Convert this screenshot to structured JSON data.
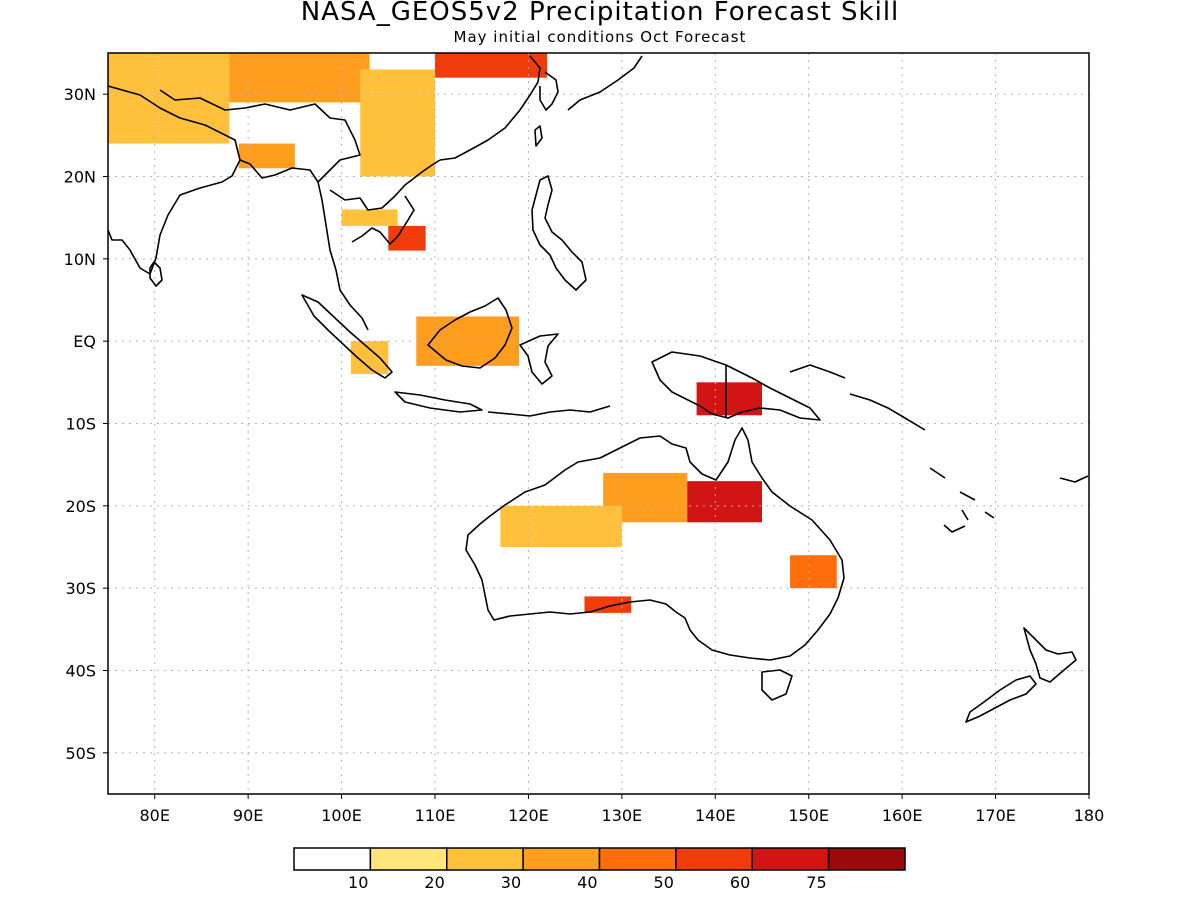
{
  "title": "NASA_GEOS5v2 Precipitation Forecast Skill",
  "subtitle": "May initial conditions  Oct Forecast",
  "map": {
    "projection": "lat-lon",
    "lon_range": [
      75,
      180
    ],
    "lat_range": [
      -55,
      35
    ],
    "grid": true,
    "lon_ticks": [
      "80E",
      "90E",
      "100E",
      "110E",
      "120E",
      "130E",
      "140E",
      "150E",
      "160E",
      "170E",
      "180"
    ],
    "lat_ticks": [
      "30N",
      "20N",
      "10N",
      "EQ",
      "10S",
      "20S",
      "30S",
      "40S",
      "50S"
    ],
    "lon_tick_values": [
      80,
      90,
      100,
      110,
      120,
      130,
      140,
      150,
      160,
      170,
      180
    ],
    "lat_tick_values": [
      30,
      20,
      10,
      0,
      -10,
      -20,
      -30,
      -40,
      -50
    ]
  },
  "colorbar": {
    "labels": [
      "10",
      "20",
      "30",
      "40",
      "50",
      "60",
      "75"
    ],
    "colors": [
      "#ffffff",
      "#ffe57a",
      "#ffc03c",
      "#ff9e1e",
      "#ff6e0a",
      "#f03c0a",
      "#d21414",
      "#9b0a0a"
    ]
  },
  "chart_data": {
    "type": "heatmap",
    "title": "NASA_GEOS5v2 Precipitation Forecast Skill",
    "subtitle": "May initial conditions  Oct Forecast",
    "xlim": [
      75,
      180
    ],
    "ylim": [
      -55,
      35
    ],
    "levels": [
      10,
      20,
      30,
      40,
      50,
      60,
      75
    ],
    "regions": [
      {
        "lon": [
          75,
          88
        ],
        "lat": [
          24,
          35
        ],
        "level": 20
      },
      {
        "lon": [
          88,
          103
        ],
        "lat": [
          29,
          35
        ],
        "level": 30
      },
      {
        "lon": [
          110,
          122
        ],
        "lat": [
          32,
          35
        ],
        "level": 50
      },
      {
        "lon": [
          102,
          110
        ],
        "lat": [
          20,
          33
        ],
        "level": 20
      },
      {
        "lon": [
          89,
          95
        ],
        "lat": [
          21,
          24
        ],
        "level": 30
      },
      {
        "lon": [
          100,
          106
        ],
        "lat": [
          14,
          16
        ],
        "level": 20
      },
      {
        "lon": [
          105,
          109
        ],
        "lat": [
          11,
          14
        ],
        "level": 50
      },
      {
        "lon": [
          108,
          119
        ],
        "lat": [
          -3,
          3
        ],
        "level": 30
      },
      {
        "lon": [
          101,
          105
        ],
        "lat": [
          -4,
          0
        ],
        "level": 20
      },
      {
        "lon": [
          138,
          145
        ],
        "lat": [
          -9,
          -5
        ],
        "level": 60
      },
      {
        "lon": [
          128,
          137
        ],
        "lat": [
          -22,
          -16
        ],
        "level": 30
      },
      {
        "lon": [
          137,
          145
        ],
        "lat": [
          -22,
          -17
        ],
        "level": 60
      },
      {
        "lon": [
          117,
          130
        ],
        "lat": [
          -25,
          -20
        ],
        "level": 20
      },
      {
        "lon": [
          126,
          131
        ],
        "lat": [
          -33,
          -31
        ],
        "level": 50
      },
      {
        "lon": [
          148,
          153
        ],
        "lat": [
          -30,
          -26
        ],
        "level": 40
      }
    ]
  }
}
